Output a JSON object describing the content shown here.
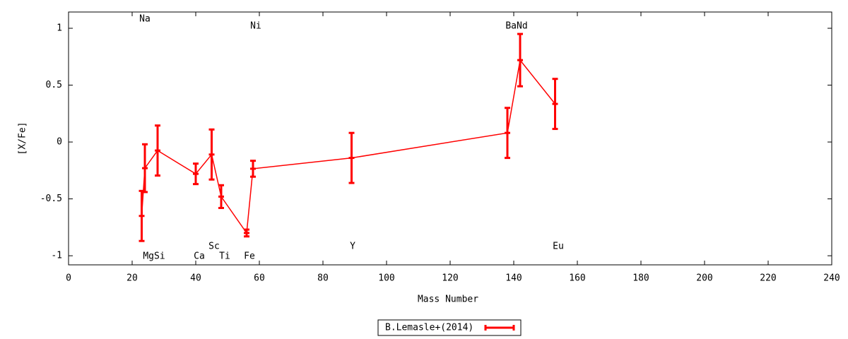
{
  "chart_data": {
    "type": "errorline",
    "xlabel": "Mass Number",
    "ylabel": "[X/Fe]",
    "xlim": [
      0,
      240
    ],
    "ylim": [
      -1.08,
      1.143
    ],
    "xticks": [
      0,
      20,
      40,
      60,
      80,
      100,
      120,
      140,
      160,
      180,
      200,
      220,
      240
    ],
    "yticks": [
      -1,
      -0.5,
      0,
      0.5,
      1
    ],
    "legend": "bottom",
    "series": [
      {
        "name": "B.Lemasle+(2014)",
        "color": "#ff0000",
        "x": [
          23,
          24,
          28,
          40,
          45,
          48,
          56,
          58,
          89,
          138,
          142,
          153
        ],
        "values": [
          -0.65,
          -0.23,
          -0.075,
          -0.28,
          -0.11,
          -0.48,
          -0.8,
          -0.235,
          -0.14,
          0.08,
          0.72,
          0.335
        ],
        "errors": [
          0.22,
          0.21,
          0.22,
          0.09,
          0.22,
          0.1,
          0.03,
          0.07,
          0.22,
          0.22,
          0.23,
          0.22
        ]
      }
    ],
    "annotations": [
      "Na",
      "Ni",
      "BaNd",
      "MgSi",
      "Ca",
      "Sc",
      "Ti",
      "Fe",
      "Y",
      "Eu"
    ]
  }
}
